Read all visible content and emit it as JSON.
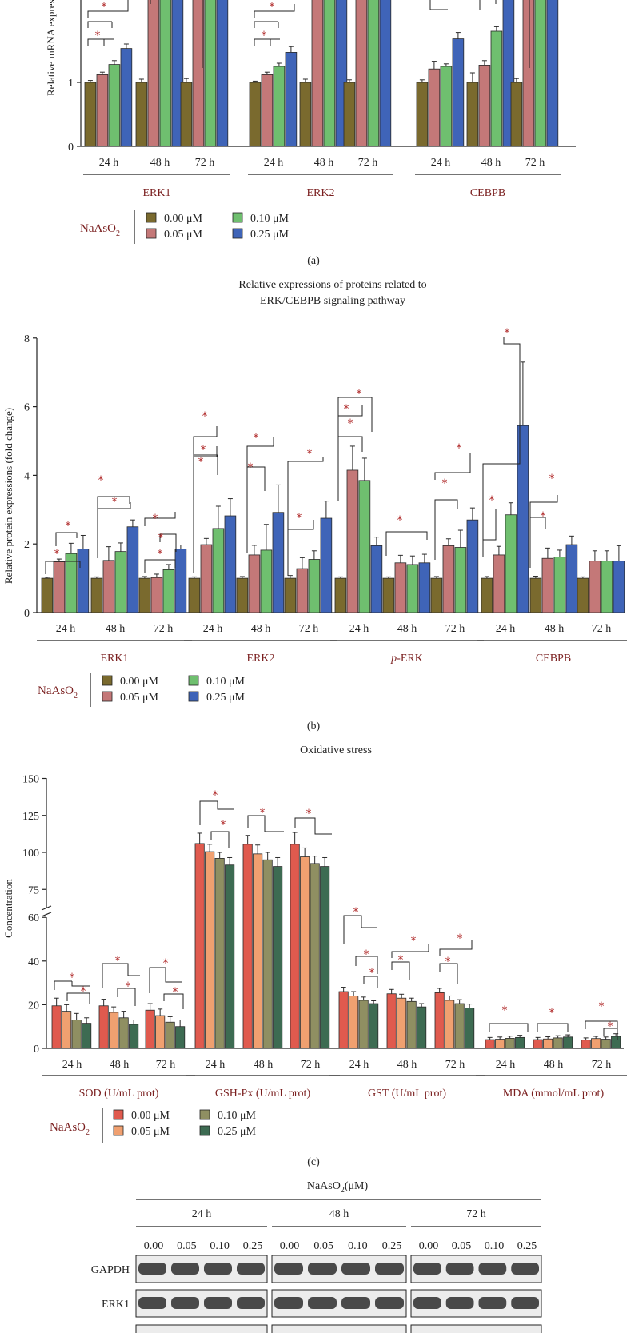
{
  "colors": {
    "a_series": [
      "#7a6a2e",
      "#c47878",
      "#6fbf6f",
      "#3f64b8"
    ],
    "c_series": [
      "#e05a4e",
      "#f0a070",
      "#8f8f62",
      "#3d6b52"
    ],
    "group_label": "#7a1f1f",
    "star": "#b02a2a"
  },
  "panel_labels": {
    "a": "(a)",
    "b": "(b)",
    "c": "(c)"
  },
  "legend": {
    "name": "NaAsO",
    "subscript": "2",
    "items": [
      "0.00 μM",
      "0.05 μM",
      "0.10 μM",
      "0.25 μM"
    ]
  },
  "chart_data": [
    {
      "id": "a",
      "type": "bar",
      "title": "",
      "ylabel": "Relative mRNA expressions (fold change)",
      "ylim": [
        0,
        2.3
      ],
      "yticks": [
        0,
        1
      ],
      "categories": [
        "24 h",
        "48 h",
        "72 h",
        "24 h",
        "48 h",
        "72 h",
        "24 h",
        "48 h",
        "72 h"
      ],
      "groups": [
        "ERK1",
        "ERK2",
        "CEBPB"
      ],
      "series": [
        {
          "name": "0.00 μM",
          "values": [
            1.0,
            1.0,
            1.0,
            1.0,
            1.0,
            1.0,
            1.0,
            1.0,
            1.0
          ],
          "errors": [
            0.03,
            0.05,
            0.06,
            0.02,
            0.05,
            0.04,
            0.04,
            0.15,
            0.06
          ]
        },
        {
          "name": "0.05 μM",
          "values": [
            1.12,
            2.3,
            2.3,
            1.12,
            2.3,
            2.3,
            1.21,
            1.27,
            2.3
          ],
          "errors": [
            0.04,
            0,
            0,
            0.04,
            0,
            0,
            0.12,
            0.07,
            0
          ]
        },
        {
          "name": "0.10 μM",
          "values": [
            1.28,
            2.3,
            2.3,
            1.25,
            2.3,
            2.3,
            1.25,
            1.8,
            2.3
          ],
          "errors": [
            0.06,
            0,
            0,
            0.05,
            0,
            0,
            0.04,
            0.07,
            0
          ]
        },
        {
          "name": "0.25 μM",
          "values": [
            1.53,
            2.3,
            2.3,
            1.47,
            2.3,
            2.3,
            1.68,
            2.3,
            2.3
          ],
          "errors": [
            0.07,
            0,
            0,
            0.09,
            0,
            0,
            0.1,
            0,
            0
          ]
        }
      ]
    },
    {
      "id": "b",
      "type": "bar",
      "title": "Relative expressions of proteins related to ERK/CEBPB signaling pathway",
      "ylabel": "Relative protein expressions (fold change)",
      "ylim": [
        0,
        8
      ],
      "yticks": [
        0,
        2,
        4,
        6,
        8
      ],
      "categories": [
        "24 h",
        "48 h",
        "72 h",
        "24 h",
        "48 h",
        "72 h",
        "24 h",
        "48 h",
        "72 h",
        "24 h",
        "48 h",
        "72 h"
      ],
      "groups": [
        "ERK1",
        "ERK2",
        "p-ERK",
        "CEBPB"
      ],
      "series": [
        {
          "name": "0.00 μM",
          "values": [
            1.0,
            1.0,
            1.0,
            1.0,
            1.0,
            1.0,
            1.0,
            1.0,
            1.0,
            1.0,
            1.0,
            1.0
          ],
          "errors": [
            0.03,
            0.04,
            0.05,
            0.04,
            0.05,
            0.08,
            0.04,
            0.04,
            0.05,
            0.05,
            0.06,
            0.04
          ]
        },
        {
          "name": "0.05 μM",
          "values": [
            1.48,
            1.52,
            1.02,
            1.98,
            1.68,
            1.28,
            4.15,
            1.45,
            1.95,
            1.68,
            1.58,
            1.5
          ]
        },
        {
          "name": "0.10 μM",
          "values": [
            1.72,
            1.78,
            1.25,
            2.45,
            1.82,
            1.55,
            3.85,
            1.4,
            1.9,
            2.85,
            1.62,
            1.5
          ]
        },
        {
          "name": "0.25 μM",
          "values": [
            1.85,
            2.5,
            1.85,
            2.82,
            2.92,
            2.75,
            1.95,
            1.45,
            2.7,
            5.45,
            1.98,
            1.5
          ]
        }
      ]
    },
    {
      "id": "c",
      "type": "bar",
      "title": "Oxidative stress",
      "ylabel": "Concentration",
      "yticks_upper": [
        75,
        100,
        125,
        150
      ],
      "yticks_lower": [
        0,
        20,
        40,
        60
      ],
      "categories": [
        "24 h",
        "48 h",
        "72 h",
        "24 h",
        "48 h",
        "72 h",
        "24 h",
        "48 h",
        "72 h",
        "24 h",
        "48 h",
        "72 h"
      ],
      "groups": [
        "SOD (U/mL prot)",
        "GSH-Px (U/mL prot)",
        "GST (U/mL prot)",
        "MDA (mmol/mL prot)"
      ],
      "series": [
        {
          "name": "0.00 μM",
          "values": [
            19.5,
            19.5,
            17.5,
            106,
            105.5,
            105.5,
            26,
            25,
            25.5,
            4,
            4,
            3.8
          ]
        },
        {
          "name": "0.05 μM",
          "values": [
            17,
            16.5,
            15,
            100.5,
            99,
            97,
            24,
            23,
            22,
            4.2,
            4.3,
            4.5
          ]
        },
        {
          "name": "0.10 μM",
          "values": [
            13,
            14,
            12,
            96,
            95,
            92.5,
            22,
            21.5,
            20.5,
            4.6,
            4.8,
            4.2
          ]
        },
        {
          "name": "0.25 μM",
          "values": [
            11.5,
            11,
            10,
            91.5,
            90.5,
            90.5,
            20.5,
            19,
            18.5,
            5,
            5.2,
            5.5
          ]
        }
      ]
    }
  ],
  "blot": {
    "title": "NaAsO",
    "title_sub": "2",
    "title_unit": "(μM)",
    "times": [
      "24 h",
      "48 h",
      "72 h"
    ],
    "concentrations": [
      "0.00",
      "0.05",
      "0.10",
      "0.25"
    ],
    "rows": [
      "GAPDH",
      "ERK1"
    ]
  }
}
